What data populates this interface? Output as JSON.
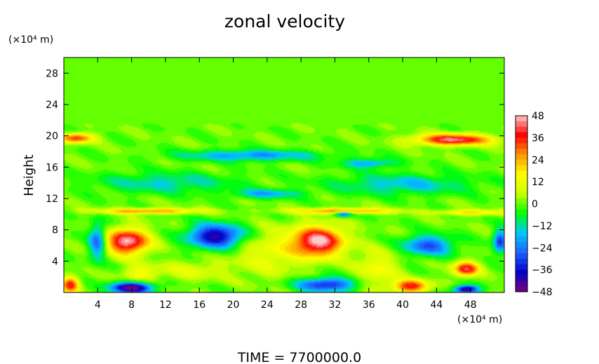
{
  "chart_data": {
    "type": "heatmap",
    "title": "zonal velocity",
    "ylabel": "Height",
    "x_unit": "(×10⁴ m)",
    "y_unit": "(×10⁴ m)",
    "xlim": [
      0,
      52
    ],
    "ylim": [
      0,
      30
    ],
    "x_ticks": [
      "4",
      "8",
      "12",
      "16",
      "20",
      "24",
      "28",
      "32",
      "36",
      "40",
      "44",
      "48"
    ],
    "y_ticks": [
      "4",
      "8",
      "12",
      "16",
      "20",
      "24",
      "28"
    ],
    "x_tick_values": [
      4,
      8,
      12,
      16,
      20,
      24,
      28,
      32,
      36,
      40,
      44,
      48
    ],
    "y_tick_values": [
      4,
      8,
      12,
      16,
      20,
      24,
      28
    ],
    "colorbar": {
      "range": [
        -48,
        48
      ],
      "tick_labels": [
        "48",
        "36",
        "24",
        "12",
        "0",
        "−12",
        "−24",
        "−36",
        "−48"
      ],
      "tick_values": [
        48,
        36,
        24,
        12,
        0,
        -12,
        -24,
        -36,
        -48
      ],
      "colors": [
        "#7a007a",
        "#0000c8",
        "#1e64ff",
        "#00c8ff",
        "#00ff00",
        "#c8ff00",
        "#ffff00",
        "#ff9600",
        "#ff0000",
        "#ffc8c8"
      ]
    },
    "grid": false,
    "legend": "right",
    "field_background": 0,
    "upper_layer": {
      "y_range": [
        21,
        30
      ],
      "value": 0
    },
    "features": [
      {
        "x": 7.5,
        "y": 6.5,
        "value": 48,
        "sx": 2.5,
        "sy": 1.6
      },
      {
        "x": 30,
        "y": 6.5,
        "value": 48,
        "sx": 3.0,
        "sy": 1.9
      },
      {
        "x": 47.5,
        "y": 3.0,
        "value": 40,
        "sx": 1.5,
        "sy": 0.9
      },
      {
        "x": 41,
        "y": 0.8,
        "value": 38,
        "sx": 2.0,
        "sy": 0.8
      },
      {
        "x": 0.8,
        "y": 1.0,
        "value": 36,
        "sx": 1.0,
        "sy": 1.0
      },
      {
        "x": 18,
        "y": 7.2,
        "value": -42,
        "sx": 3.2,
        "sy": 1.5
      },
      {
        "x": 4,
        "y": 6.5,
        "value": -30,
        "sx": 1.0,
        "sy": 2.2
      },
      {
        "x": 8,
        "y": 0.6,
        "value": -48,
        "sx": 2.5,
        "sy": 0.7
      },
      {
        "x": 31,
        "y": 1.0,
        "value": -34,
        "sx": 3.5,
        "sy": 0.9
      },
      {
        "x": 47.5,
        "y": 0.4,
        "value": -44,
        "sx": 1.5,
        "sy": 0.5
      },
      {
        "x": 43,
        "y": 6.0,
        "value": -28,
        "sx": 3.0,
        "sy": 1.3
      },
      {
        "x": 51.5,
        "y": 6.5,
        "value": -32,
        "sx": 0.8,
        "sy": 1.5
      },
      {
        "x": 24,
        "y": 5.0,
        "value": 12,
        "sx": 4.0,
        "sy": 3.0
      },
      {
        "x": 37,
        "y": 3.0,
        "value": 14,
        "sx": 2.5,
        "sy": 2.5
      },
      {
        "x": 1.5,
        "y": 19.7,
        "value": 34,
        "sx": 2.0,
        "sy": 0.6
      },
      {
        "x": 46,
        "y": 19.5,
        "value": 44,
        "sx": 4.5,
        "sy": 0.7
      },
      {
        "x": 22,
        "y": 17.5,
        "value": -22,
        "sx": 8.0,
        "sy": 0.7
      },
      {
        "x": 36,
        "y": 16.5,
        "value": -20,
        "sx": 3.0,
        "sy": 0.6
      },
      {
        "x": 40,
        "y": 13.8,
        "value": -16,
        "sx": 8.0,
        "sy": 1.3
      },
      {
        "x": 12,
        "y": 14.0,
        "value": -14,
        "sx": 8.0,
        "sy": 1.3
      },
      {
        "x": 24,
        "y": 12.6,
        "value": -18,
        "sx": 4.0,
        "sy": 0.6
      },
      {
        "x": 10,
        "y": 10.4,
        "value": 28,
        "sx": 6.0,
        "sy": 0.35
      },
      {
        "x": 33,
        "y": 10.4,
        "value": 28,
        "sx": 6.0,
        "sy": 0.35
      },
      {
        "x": 48,
        "y": 10.2,
        "value": 20,
        "sx": 4.0,
        "sy": 0.35
      },
      {
        "x": 33,
        "y": 10.0,
        "value": -34,
        "sx": 1.0,
        "sy": 0.35
      },
      {
        "x": 15,
        "y": 2.8,
        "value": 10,
        "sx": 4.0,
        "sy": 1.2
      },
      {
        "x": 9,
        "y": 2.5,
        "value": 14,
        "sx": 2.0,
        "sy": 1.0
      }
    ]
  },
  "footer": {
    "time_label": "TIME = 7700000.0"
  }
}
